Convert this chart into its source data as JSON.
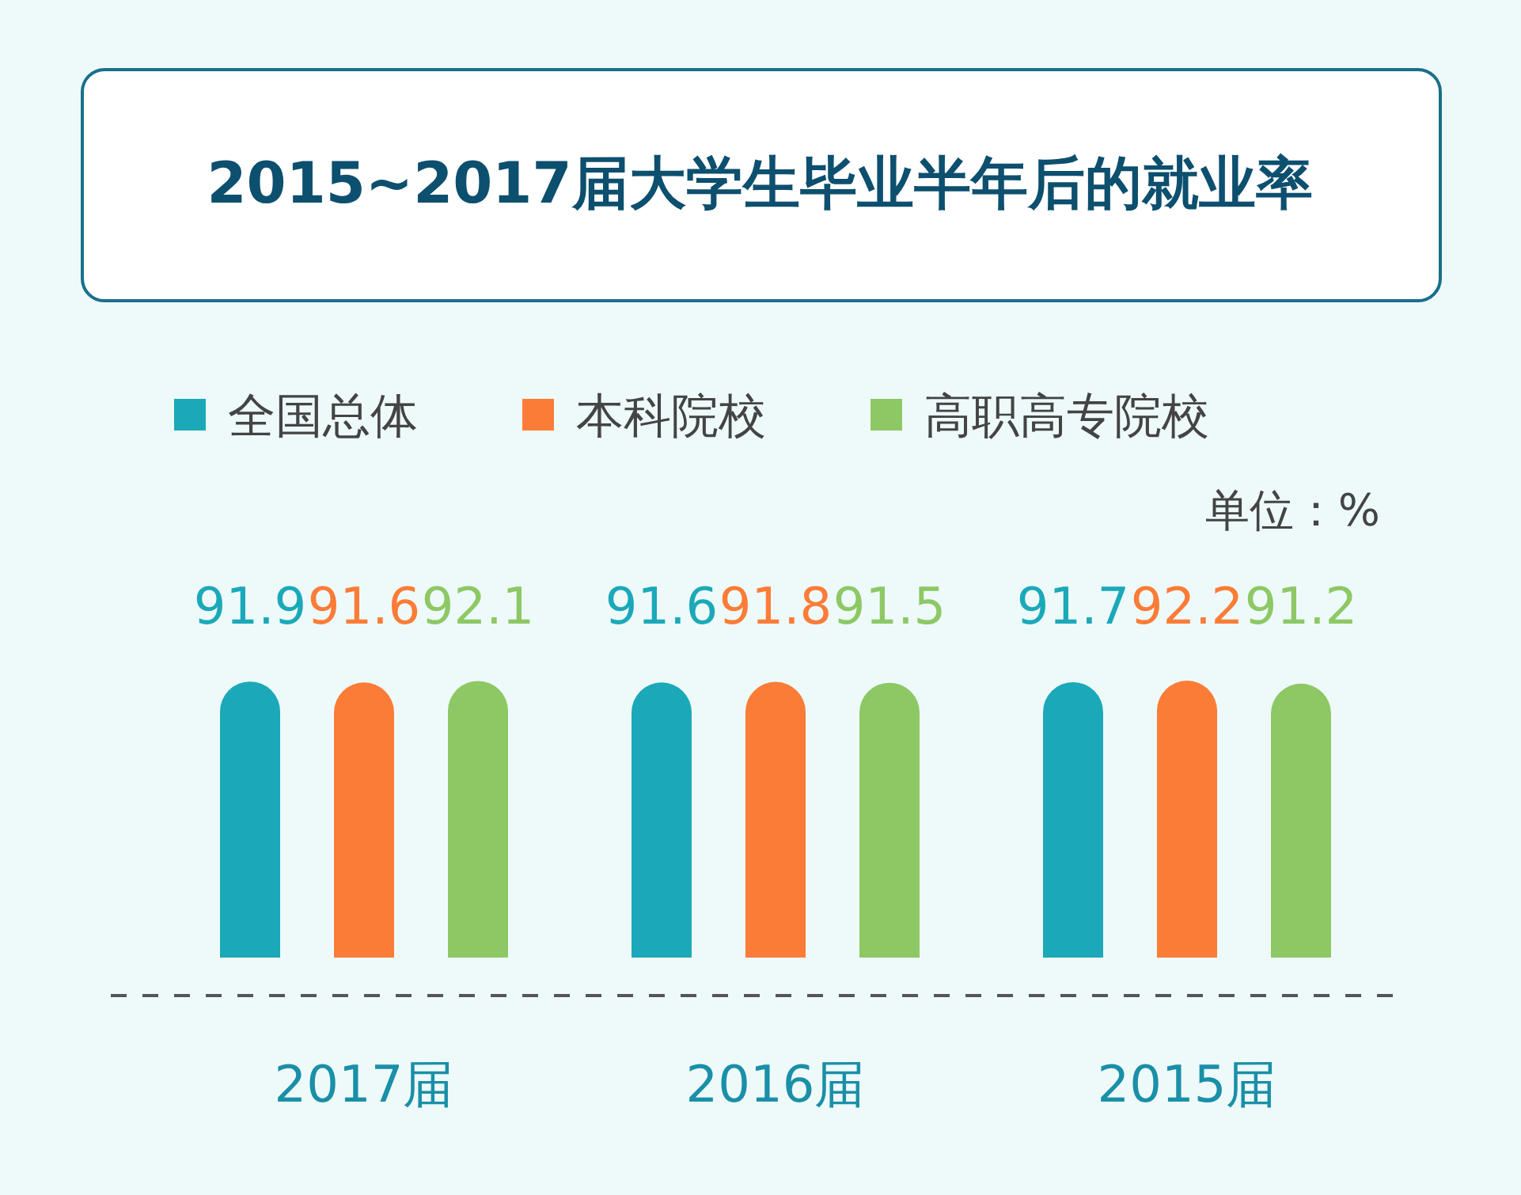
{
  "chart_data": {
    "type": "bar",
    "title": "2015~2017届大学生毕业半年后的就业率",
    "categories": [
      "2017届",
      "2016届",
      "2015届"
    ],
    "series": [
      {
        "name": "全国总体",
        "color": "#1ba9b9",
        "values": [
          91.9,
          91.6,
          91.7
        ]
      },
      {
        "name": "本科院校",
        "color": "#fb7c37",
        "values": [
          91.6,
          91.8,
          92.2
        ]
      },
      {
        "name": "高职高专院校",
        "color": "#8dc865",
        "values": [
          92.1,
          91.5,
          91.2
        ]
      }
    ],
    "data_labels": true,
    "legend": "top left",
    "annotations": [
      "单位：%"
    ]
  }
}
